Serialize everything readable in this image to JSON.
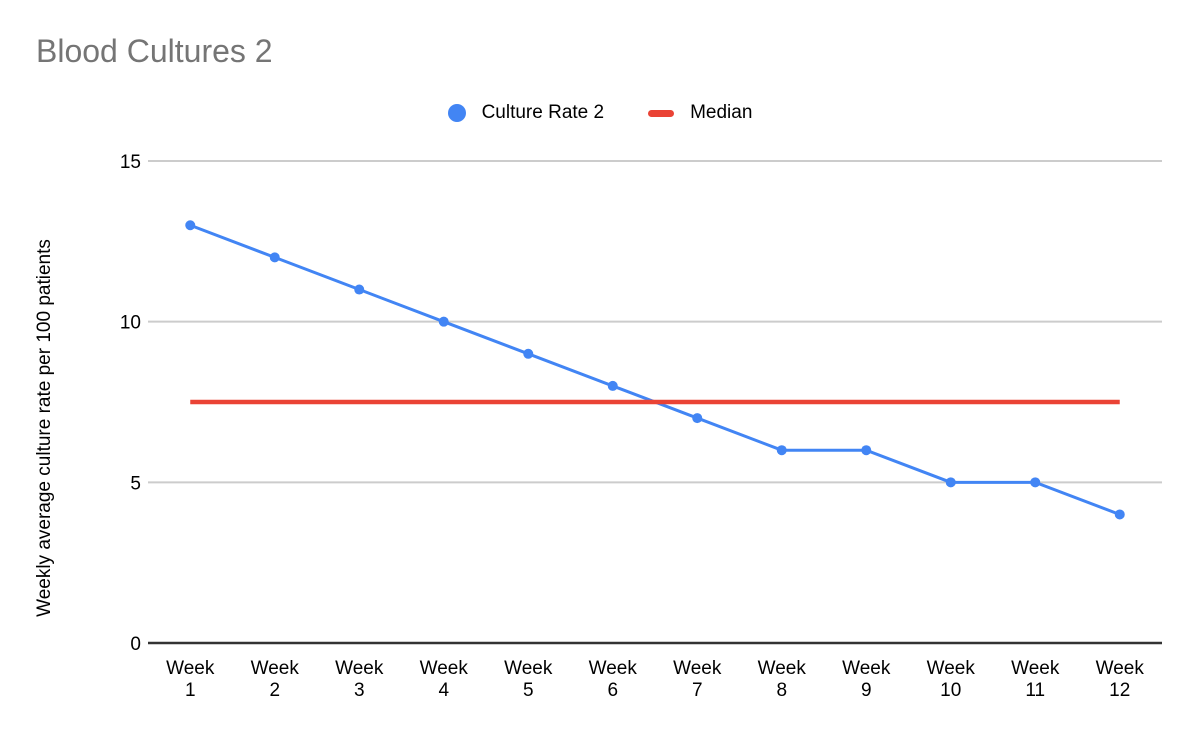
{
  "title": "Blood Cultures 2",
  "legend": {
    "items": [
      {
        "label": "Culture Rate 2",
        "marker": "circle",
        "color": "#4285F4"
      },
      {
        "label": "Median",
        "marker": "dash",
        "color": "#EA4335"
      }
    ]
  },
  "y_axis": {
    "title": "Weekly average culture rate per 100 patients"
  },
  "colors": {
    "series_blue": "#4285F4",
    "median_red": "#EA4335",
    "gridline": "#cccccc",
    "axis_line": "#333333",
    "title_gray": "#757575",
    "text": "#000000"
  },
  "chart_data": {
    "type": "line",
    "title": "Blood Cultures 2",
    "xlabel": "",
    "ylabel": "Weekly average culture rate per 100 patients",
    "categories": [
      "Week 1",
      "Week 2",
      "Week 3",
      "Week 4",
      "Week 5",
      "Week 6",
      "Week 7",
      "Week 8",
      "Week 9",
      "Week 10",
      "Week 11",
      "Week 12"
    ],
    "series": [
      {
        "name": "Culture Rate 2",
        "color": "#4285F4",
        "marker": true,
        "values": [
          13,
          12,
          11,
          10,
          9,
          8,
          7,
          6,
          6,
          5,
          5,
          4
        ]
      },
      {
        "name": "Median",
        "color": "#EA4335",
        "marker": false,
        "values": [
          7.5,
          7.5,
          7.5,
          7.5,
          7.5,
          7.5,
          7.5,
          7.5,
          7.5,
          7.5,
          7.5,
          7.5
        ]
      }
    ],
    "ylim": [
      0,
      15
    ],
    "yticks": [
      0,
      5,
      10,
      15
    ],
    "grid": true,
    "legend_position": "top"
  }
}
